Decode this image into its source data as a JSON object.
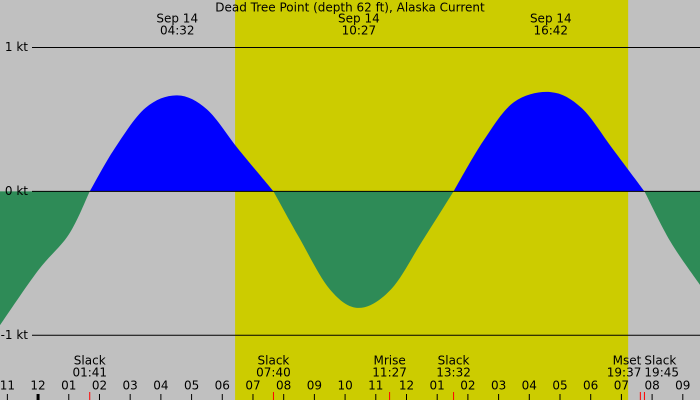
{
  "chart_data": {
    "type": "area",
    "title": "Dead Tree Point (depth 62 ft), Alaska Current",
    "x": [
      -1.24,
      0,
      1,
      1.683,
      2.5,
      3.5,
      4.533,
      5.5,
      6.5,
      7.667,
      8.5,
      9.5,
      10.45,
      11.5,
      12.5,
      13.533,
      14.5,
      15.5,
      16.7,
      17.7,
      18.7,
      19.75,
      20.6,
      21.56
    ],
    "values": [
      -0.93,
      -0.55,
      -0.3,
      0,
      0.3,
      0.58,
      0.667,
      0.57,
      0.3,
      0,
      -0.32,
      -0.68,
      -0.81,
      -0.68,
      -0.35,
      0,
      0.35,
      0.62,
      0.69,
      0.58,
      0.3,
      0,
      -0.35,
      -0.65
    ],
    "positive_color": "#0000ff",
    "negative_color": "#2e8b57",
    "background_color": "#c0c0c0",
    "daylight_color": "#cccc00",
    "daylight": [
      6.417,
      19.22
    ],
    "xlim": [
      -1.24,
      21.56
    ],
    "ylim": [
      -1.45,
      1.33
    ],
    "yticks": [
      {
        "value": 1,
        "label": "1 kt"
      },
      {
        "value": 0,
        "label": "0 kt"
      },
      {
        "value": -1,
        "label": "-1 kt"
      }
    ],
    "xticks": [
      {
        "value": -1,
        "label": "11"
      },
      {
        "value": 0,
        "label": "12"
      },
      {
        "value": 1,
        "label": "01"
      },
      {
        "value": 2,
        "label": "02"
      },
      {
        "value": 3,
        "label": "03"
      },
      {
        "value": 4,
        "label": "04"
      },
      {
        "value": 5,
        "label": "05"
      },
      {
        "value": 6,
        "label": "06"
      },
      {
        "value": 7,
        "label": "07"
      },
      {
        "value": 8,
        "label": "08"
      },
      {
        "value": 9,
        "label": "09"
      },
      {
        "value": 10,
        "label": "10"
      },
      {
        "value": 11,
        "label": "11"
      },
      {
        "value": 12,
        "label": "12"
      },
      {
        "value": 13,
        "label": "01"
      },
      {
        "value": 14,
        "label": "02"
      },
      {
        "value": 15,
        "label": "03"
      },
      {
        "value": 16,
        "label": "04"
      },
      {
        "value": 17,
        "label": "05"
      },
      {
        "value": 18,
        "label": "06"
      },
      {
        "value": 19,
        "label": "07"
      },
      {
        "value": 20,
        "label": "08"
      },
      {
        "value": 21,
        "label": "09"
      }
    ],
    "peaks": [
      {
        "date": "Sep 14",
        "time": "04:32",
        "x": 4.533
      },
      {
        "date": "Sep 14",
        "time": "10:27",
        "x": 10.45
      },
      {
        "date": "Sep 14",
        "time": "16:42",
        "x": 16.7
      }
    ],
    "events": [
      {
        "label": "Slack",
        "time": "01:41",
        "x": 1.683
      },
      {
        "label": "Slack",
        "time": "07:40",
        "x": 7.667
      },
      {
        "label": "Mrise",
        "time": "11:27",
        "x": 11.45
      },
      {
        "label": "Slack",
        "time": "13:32",
        "x": 13.533
      },
      {
        "label": "Mset",
        "time": "19:37",
        "x": 19.617
      },
      {
        "label": "Slack",
        "time": "19:45",
        "x": 19.75
      }
    ]
  }
}
